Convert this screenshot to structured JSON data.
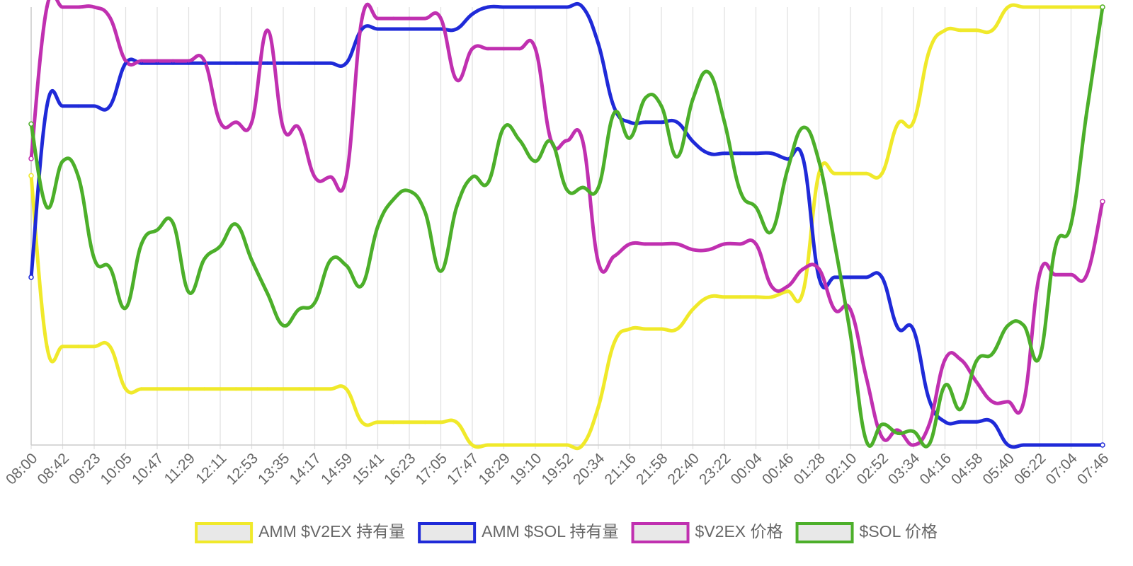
{
  "chart_data": {
    "type": "line",
    "categories": [
      "08:00",
      null,
      "08:42",
      null,
      "09:23",
      null,
      "10:05",
      null,
      "10:47",
      null,
      "11:29",
      null,
      "12:11",
      null,
      "12:53",
      null,
      "13:35",
      null,
      "14:17",
      null,
      "14:59",
      null,
      "15:41",
      null,
      "16:23",
      null,
      "17:05",
      null,
      "17:47",
      null,
      "18:29",
      null,
      "19:10",
      null,
      "19:52",
      null,
      "20:34",
      null,
      "21:16",
      null,
      "21:58",
      null,
      "22:40",
      null,
      "23:22",
      null,
      "00:04",
      null,
      "00:46",
      null,
      "01:28",
      null,
      "02:10",
      null,
      "02:52",
      null,
      "03:34",
      null,
      "04:16",
      null,
      "04:58",
      null,
      "05:40",
      null,
      "06:22",
      null,
      "07:04",
      null,
      "07:46"
    ],
    "ylim": [
      0,
      100
    ],
    "grid": true,
    "legend": "bottom",
    "series": [
      {
        "name": "AMM $V2EX 持有量",
        "color": "#f0e92a",
        "values": [
          61.5,
          22.5,
          22.5,
          22.5,
          22.5,
          22.5,
          12.8,
          12.8,
          12.8,
          12.8,
          12.8,
          12.8,
          12.8,
          12.8,
          12.8,
          12.8,
          12.8,
          12.8,
          12.8,
          12.8,
          12.8,
          5.2,
          5.2,
          5.2,
          5.2,
          5.2,
          5.2,
          5.2,
          0,
          0,
          0,
          0,
          0,
          0,
          0,
          0,
          8.7,
          23.3,
          26.5,
          26.5,
          26.5,
          26.5,
          31.0,
          33.8,
          33.8,
          33.8,
          33.8,
          33.8,
          35.1,
          35.1,
          62.0,
          62.0,
          62.0,
          62.0,
          62.0,
          73.3,
          73.8,
          90.0,
          94.7,
          94.7,
          94.7,
          94.7,
          100,
          100,
          100,
          100,
          100,
          100,
          100
        ]
      },
      {
        "name": "AMM $SOL 持有量",
        "color": "#1f2ad8",
        "values": [
          38.3,
          77.4,
          77.4,
          77.4,
          77.4,
          77.4,
          87.2,
          87.2,
          87.2,
          87.2,
          87.2,
          87.2,
          87.2,
          87.2,
          87.2,
          87.2,
          87.2,
          87.2,
          87.2,
          87.2,
          87.2,
          95.0,
          95.0,
          95.0,
          95.0,
          95.0,
          95.0,
          95.0,
          98.4,
          100,
          100,
          100,
          100,
          100,
          100,
          100,
          91.6,
          77.1,
          73.7,
          73.7,
          73.7,
          73.7,
          69.3,
          66.6,
          66.6,
          66.6,
          66.6,
          66.6,
          65.3,
          65.3,
          38.3,
          38.3,
          38.3,
          38.3,
          38.3,
          26.8,
          26.3,
          10.3,
          5.3,
          5.3,
          5.3,
          5.3,
          0,
          0,
          0,
          0,
          0,
          0,
          0
        ]
      },
      {
        "name": "$V2EX 价格",
        "color": "#c030b0",
        "values": [
          65.4,
          100,
          100,
          100,
          100,
          97.6,
          87.7,
          87.7,
          87.7,
          87.7,
          87.7,
          87.7,
          73.7,
          73.7,
          73.7,
          94.7,
          72.4,
          72.4,
          61.2,
          61.2,
          61.2,
          97.4,
          97.4,
          97.4,
          97.4,
          97.4,
          97.4,
          83.4,
          90.5,
          90.5,
          90.5,
          90.5,
          90.5,
          69.5,
          69.5,
          69.5,
          41.7,
          43.1,
          45.9,
          45.9,
          45.9,
          45.9,
          44.6,
          44.6,
          45.9,
          45.9,
          45.9,
          36.2,
          36.2,
          40.2,
          40.2,
          30.9,
          30.9,
          15.5,
          1.8,
          3.4,
          0,
          4.7,
          19.5,
          19.5,
          14.4,
          9.9,
          9.9,
          9.9,
          38.9,
          38.9,
          38.9,
          38.9,
          55.6
        ]
      },
      {
        "name": "$SOL 价格",
        "color": "#4caf2a",
        "values": [
          73.3,
          54.3,
          64.8,
          61.2,
          42.6,
          40.5,
          31.3,
          45.9,
          49.1,
          50.7,
          34.9,
          42.5,
          45.4,
          50.4,
          42.2,
          34.6,
          27.3,
          31.0,
          32.5,
          42.2,
          41.0,
          36.5,
          49.9,
          56.1,
          58.0,
          53.2,
          39.7,
          54.3,
          61.2,
          59.9,
          72.5,
          69.6,
          64.8,
          69.3,
          58.3,
          58.8,
          58.8,
          75.8,
          70.1,
          79.3,
          77.4,
          65.8,
          79.0,
          85.1,
          73.8,
          58.0,
          54.3,
          48.8,
          62.8,
          72.5,
          64.8,
          45.9,
          25.2,
          1.0,
          4.7,
          2.7,
          3.1,
          0.2,
          13.6,
          8.2,
          19.2,
          20.8,
          27.3,
          27.3,
          20.0,
          45.1,
          50.4,
          76.1,
          100
        ]
      }
    ]
  }
}
